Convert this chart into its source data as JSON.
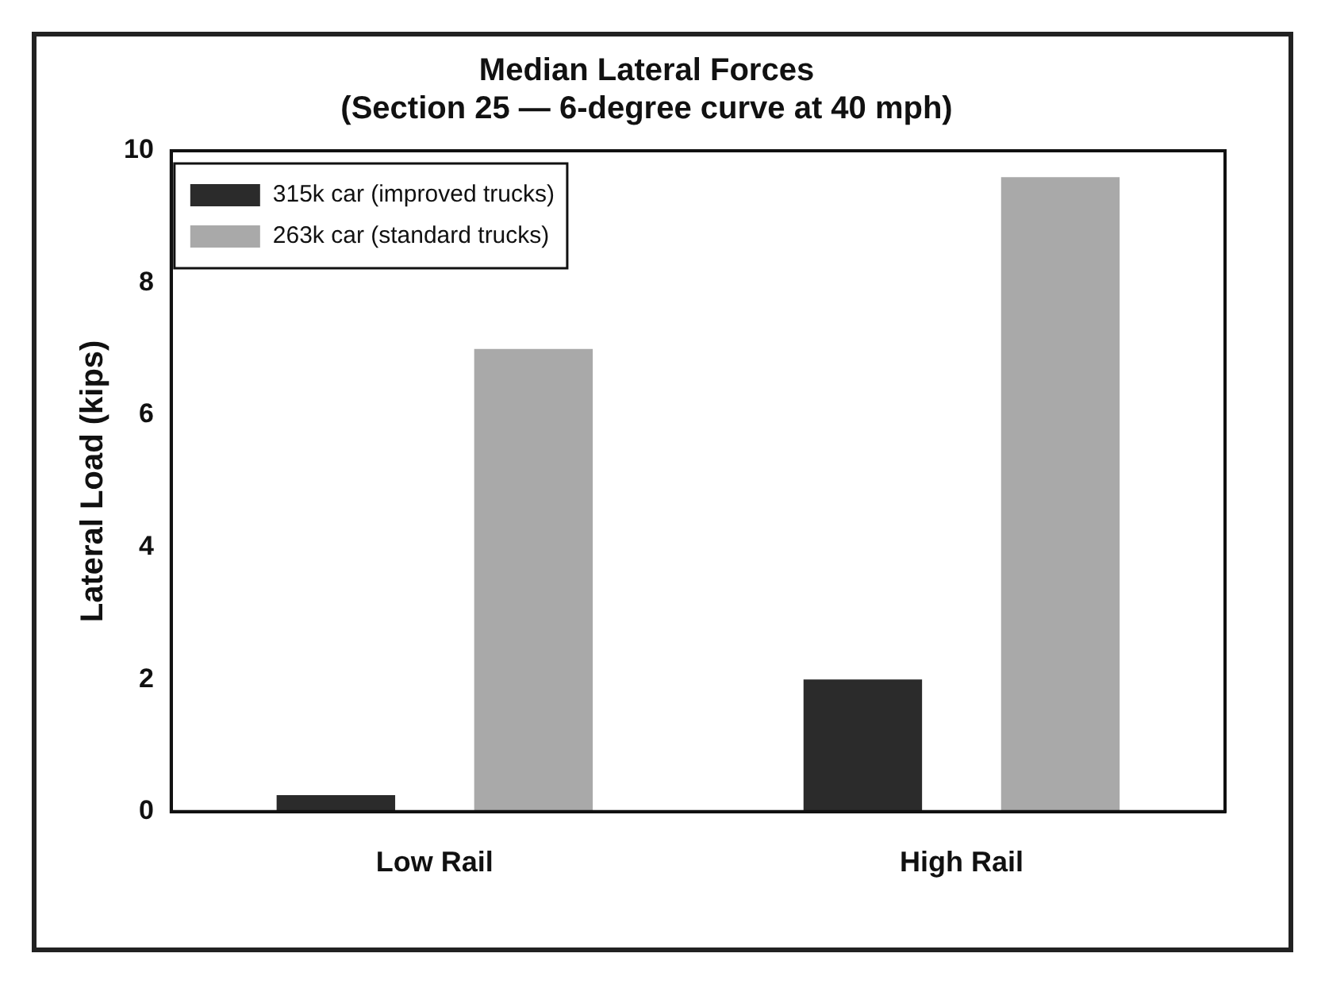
{
  "chart_data": {
    "type": "bar",
    "title": [
      "Median Lateral Forces",
      "(Section 25 — 6-degree curve at 40 mph)"
    ],
    "ylabel": "Lateral Load (kips)",
    "categories": [
      "Low Rail",
      "High Rail"
    ],
    "series": [
      {
        "name": "315k car (improved trucks)",
        "color": "#2b2b2b",
        "values": [
          0.25,
          2.0
        ]
      },
      {
        "name": "263k car (standard trucks)",
        "color": "#a9a9a9",
        "values": [
          7.0,
          9.6
        ]
      }
    ],
    "ylim": [
      0,
      10
    ],
    "yticks": [
      0,
      2,
      4,
      6,
      8,
      10
    ],
    "grid": false,
    "legend": "top left"
  }
}
